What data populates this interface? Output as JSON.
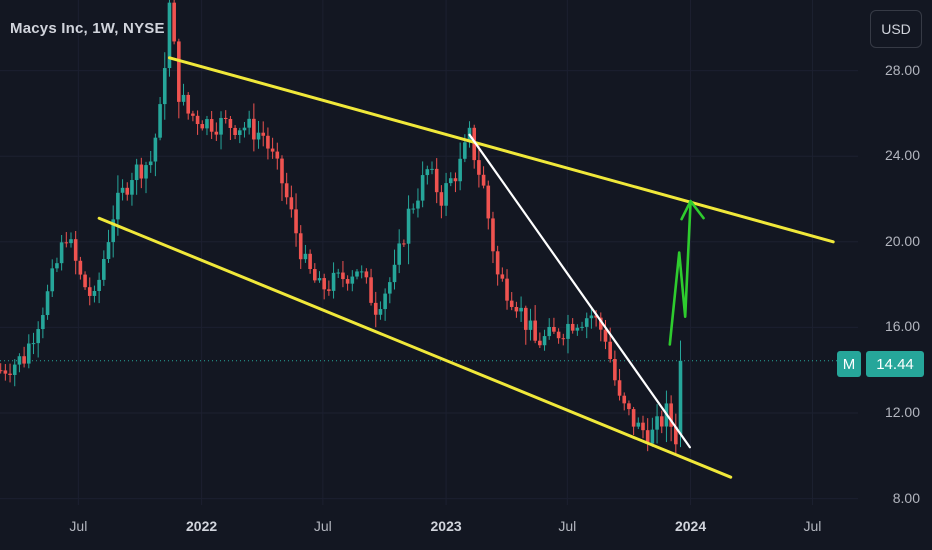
{
  "header": {
    "title": "Macys Inc, 1W, NYSE"
  },
  "toolbar": {
    "currency_label": "USD"
  },
  "price_badge": {
    "symbol": "M",
    "value": "14.44",
    "color": "#26a69a"
  },
  "colors": {
    "background": "#131722",
    "up": "#26a69a",
    "down": "#ef5350",
    "channel": "#f0e83a",
    "trendline": "#ffffff",
    "arrow": "#2ecc2e",
    "text": "#b2b5be"
  },
  "chart_data": {
    "type": "candlestick",
    "title": "Macys Inc, 1W, NYSE",
    "xlabel": "",
    "ylabel": "",
    "ylim": [
      7.7,
      31.3
    ],
    "xlim": [
      "2021-03-06",
      "2024-09-07"
    ],
    "y_ticks": [
      "8.00",
      "12.00",
      "16.00",
      "20.00",
      "24.00",
      "28.00"
    ],
    "x_ticks": [
      {
        "label": "Jul",
        "date": "2021-07-01"
      },
      {
        "label": "2022",
        "date": "2022-01-01"
      },
      {
        "label": "Jul",
        "date": "2022-07-01"
      },
      {
        "label": "2023",
        "date": "2023-01-01"
      },
      {
        "label": "Jul",
        "date": "2023-07-01"
      },
      {
        "label": "2024",
        "date": "2024-01-01"
      },
      {
        "label": "Jul",
        "date": "2024-07-01"
      }
    ],
    "last_price": 14.44,
    "trend_lines": [
      {
        "name": "upper-channel",
        "color": "#f0e83a",
        "points": [
          [
            "2021-11-14",
            28.6
          ],
          [
            "2024-08-01",
            20.0
          ]
        ]
      },
      {
        "name": "lower-channel",
        "color": "#f0e83a",
        "points": [
          [
            "2021-08-01",
            21.1
          ],
          [
            "2024-03-01",
            9.0
          ]
        ]
      },
      {
        "name": "downtrend",
        "color": "#ffffff",
        "points": [
          [
            "2023-02-05",
            25.0
          ],
          [
            "2023-12-31",
            10.4
          ]
        ]
      }
    ],
    "projection_arrow": {
      "color": "#2ecc2e",
      "points": [
        [
          "2023-12-01",
          15.2
        ],
        [
          "2023-12-15",
          19.5
        ],
        [
          "2023-12-24",
          16.5
        ],
        [
          "2024-01-01",
          21.9
        ]
      ]
    },
    "waypoints": [
      [
        "2021-03-07",
        14.0
      ],
      [
        "2021-04-11",
        14.6
      ],
      [
        "2021-05-16",
        17.5
      ],
      [
        "2021-06-13",
        20.4
      ],
      [
        "2021-07-04",
        18.3
      ],
      [
        "2021-07-25",
        17.2
      ],
      [
        "2021-08-22",
        21.3
      ],
      [
        "2021-09-19",
        23.2
      ],
      [
        "2021-10-17",
        23.8
      ],
      [
        "2021-10-31",
        26.0
      ],
      [
        "2021-11-14",
        31.0
      ],
      [
        "2021-11-28",
        27.0
      ],
      [
        "2021-12-12",
        26.0
      ],
      [
        "2022-01-09",
        25.6
      ],
      [
        "2022-02-06",
        25.5
      ],
      [
        "2022-03-06",
        25.4
      ],
      [
        "2022-04-03",
        25.0
      ],
      [
        "2022-05-01",
        22.8
      ],
      [
        "2022-06-05",
        18.9
      ],
      [
        "2022-06-26",
        17.8
      ],
      [
        "2022-07-24",
        18.2
      ],
      [
        "2022-08-21",
        18.8
      ],
      [
        "2022-09-18",
        17.0
      ],
      [
        "2022-10-16",
        18.5
      ],
      [
        "2022-11-06",
        21.3
      ],
      [
        "2022-12-04",
        23.3
      ],
      [
        "2022-12-25",
        22.1
      ],
      [
        "2023-01-22",
        23.6
      ],
      [
        "2023-02-05",
        24.9
      ],
      [
        "2023-02-26",
        22.5
      ],
      [
        "2023-03-19",
        18.4
      ],
      [
        "2023-04-16",
        17.2
      ],
      [
        "2023-05-14",
        15.3
      ],
      [
        "2023-06-11",
        15.6
      ],
      [
        "2023-07-09",
        16.3
      ],
      [
        "2023-08-06",
        16.6
      ],
      [
        "2023-08-27",
        15.6
      ],
      [
        "2023-09-17",
        12.5
      ],
      [
        "2023-10-15",
        11.3
      ],
      [
        "2023-11-05",
        11.0
      ],
      [
        "2023-11-26",
        12.0
      ],
      [
        "2023-12-10",
        10.9
      ],
      [
        "2023-12-17",
        14.44
      ]
    ]
  }
}
